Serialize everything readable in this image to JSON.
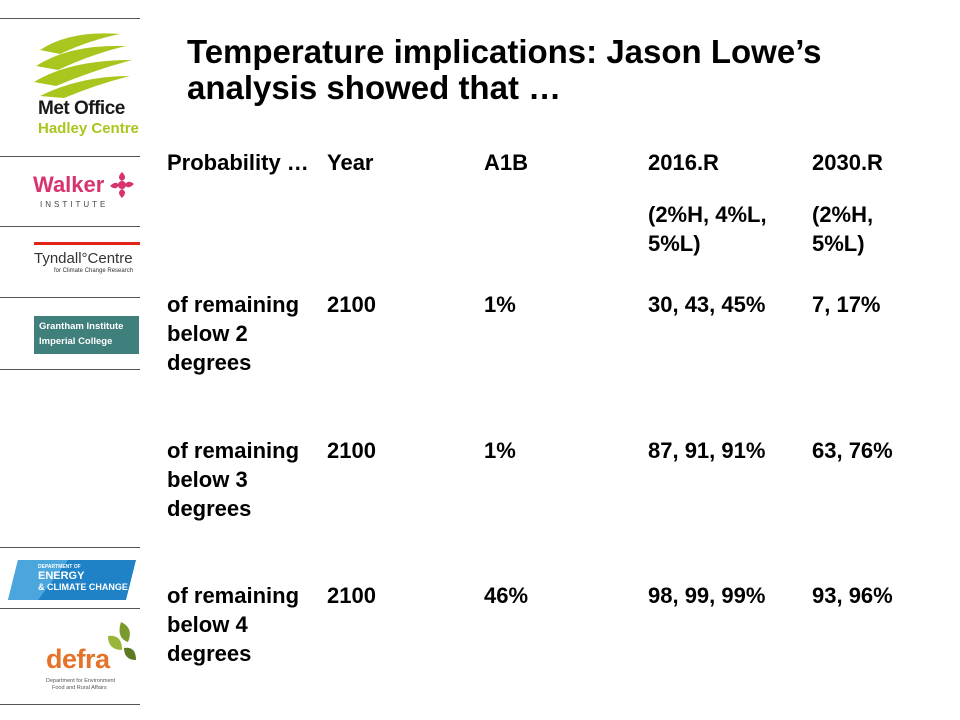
{
  "title": "Temperature implications: Jason Lowe’s analysis showed that …",
  "sidebar": {
    "logos": [
      {
        "name": "met-office-hadley-centre",
        "line1": "Met Office",
        "line2": "Hadley Centre"
      },
      {
        "name": "walker-institute",
        "line1": "Walker",
        "line2": "INSTITUTE"
      },
      {
        "name": "tyndall-centre",
        "line1": "Tyndall°Centre",
        "line2": "for Climate Change Research"
      },
      {
        "name": "grantham-institute",
        "line1": "Grantham Institute",
        "line2": "Imperial College"
      },
      {
        "name": "decc",
        "line1": "DEPARTMENT OF",
        "line2": "ENERGY",
        "line3": "& CLIMATE CHANGE"
      },
      {
        "name": "defra",
        "line1": "defra",
        "line2": "Department for Environment",
        "line3": "Food and Rural Affairs"
      }
    ]
  },
  "table": {
    "headers": [
      "Probability …",
      "Year",
      "A1B",
      "2016.R",
      "2030.R"
    ],
    "subheaders": [
      "",
      "",
      "",
      "(2%H, 4%L, 5%L)",
      "(2%H, 5%L)"
    ],
    "rows": [
      [
        "of remaining below 2 degrees",
        "2100",
        "1%",
        "30, 43, 45%",
        "7, 17%"
      ],
      [
        "of remaining below 3 degrees",
        "2100",
        "1%",
        "87, 91, 91%",
        "63, 76%"
      ],
      [
        "of remaining below 4 degrees",
        "2100",
        "46%",
        "98, 99, 99%",
        "93, 96%"
      ]
    ]
  },
  "colors": {
    "met_office_green": "#a8c61e",
    "walker_pink": "#d8336f",
    "tyndall_red": "#e2231a",
    "grantham_teal": "#3f7f7c",
    "decc_blue": "#1f82c6",
    "defra_green": "#7b9a2e",
    "defra_orange": "#e4722a"
  }
}
